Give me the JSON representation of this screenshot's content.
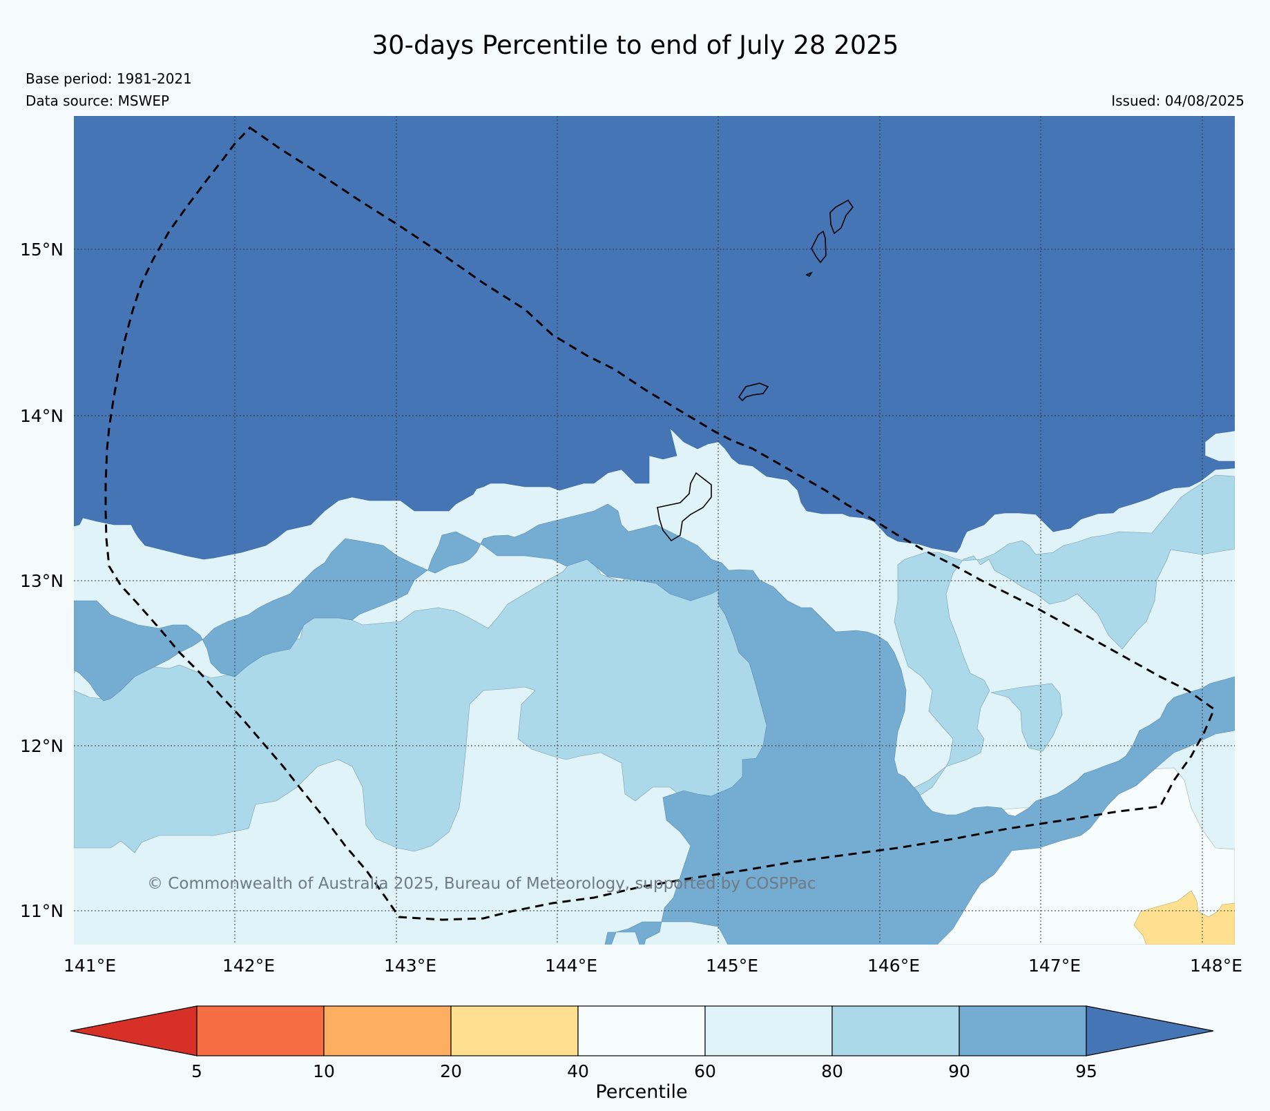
{
  "header": {
    "title": "30-days Percentile to end of July 28 2025",
    "base_period": "Base period: 1981-2021",
    "data_source": "Data source: MSWEP",
    "issued": "Issued: 04/08/2025"
  },
  "map": {
    "copyright": "© Commonwealth of Australia 2025, Bureau of Meteorology, supported by COSPPac",
    "lon_labels": [
      "141°E",
      "142°E",
      "143°E",
      "144°E",
      "145°E",
      "146°E",
      "147°E",
      "148°E"
    ],
    "lat_labels": [
      "15°N",
      "14°N",
      "13°N",
      "12°N",
      "11°N"
    ]
  },
  "colorbar": {
    "label": "Percentile",
    "ticks": [
      "5",
      "10",
      "20",
      "40",
      "60",
      "80",
      "90",
      "95"
    ],
    "colors": [
      "#d73027",
      "#f46d43",
      "#fdae61",
      "#fee090",
      "#f7fcfd",
      "#e0f3f8",
      "#abd9e9",
      "#74add1",
      "#4575b4"
    ]
  },
  "colors": {
    "background": "#f5fbfd",
    "p95": "#4575b4",
    "p90": "#74add1",
    "p80": "#abd9e9",
    "p60": "#e0f3f8",
    "p40": "#f7fcfd",
    "p20": "#fee090"
  }
}
